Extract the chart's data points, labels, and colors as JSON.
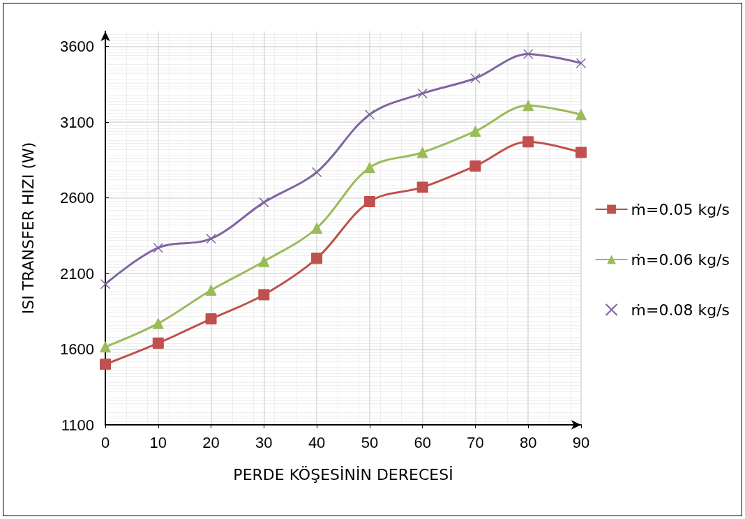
{
  "chart_data": {
    "type": "line",
    "xlabel": "PERDE KÖŞESİNİN DERECESİ",
    "ylabel": "ISI TRANSFER HIZI (W)",
    "x": [
      0,
      10,
      20,
      30,
      40,
      50,
      60,
      70,
      80,
      90
    ],
    "series": [
      {
        "name": "ṁ=0.05 kg/s",
        "color": "#c0504d",
        "marker": "square",
        "values": [
          1500,
          1640,
          1800,
          1960,
          2200,
          2575,
          2670,
          2810,
          2970,
          2900
        ]
      },
      {
        "name": "ṁ=0.06 kg/s",
        "color": "#9bbb59",
        "marker": "triangle",
        "values": [
          1615,
          1770,
          1990,
          2180,
          2400,
          2800,
          2900,
          3040,
          3210,
          3150
        ]
      },
      {
        "name": "ṁ=0.08 kg/s",
        "color": "#8064a2",
        "marker": "cross",
        "values": [
          2030,
          2270,
          2330,
          2570,
          2770,
          3150,
          3290,
          3390,
          3550,
          3490
        ]
      }
    ],
    "xlim": [
      0,
      90
    ],
    "xticks": [
      0,
      10,
      20,
      30,
      40,
      50,
      60,
      70,
      80,
      90
    ],
    "ylim": [
      1100,
      3700
    ],
    "yticks": [
      1100,
      1600,
      2100,
      2600,
      3100,
      3600
    ],
    "grid": true,
    "legend": "right",
    "line_style": "solid"
  }
}
